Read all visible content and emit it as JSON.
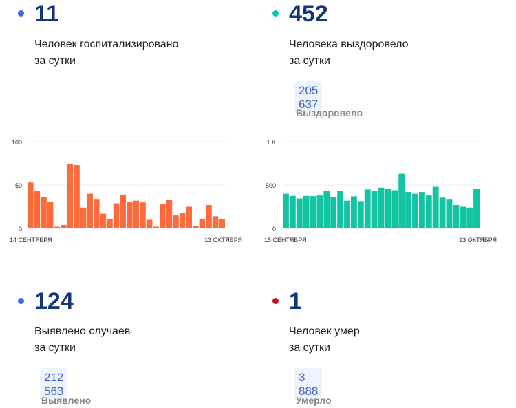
{
  "cards": [
    {
      "value": "11",
      "desc1": "Человек госпитализировано",
      "desc2": "за сутки",
      "dot": "#3d6de0"
    },
    {
      "value": "452",
      "desc1": "Человека выздоровело",
      "desc2": "за сутки",
      "total": "205 637",
      "total_label": "Выздоровело",
      "dot": "#13c4a3"
    },
    {
      "value": "124",
      "desc1": "Выявлено случаев",
      "desc2": "за сутки",
      "total": "212 563",
      "total_label": "Выявлено",
      "dot": "#3d6de0"
    },
    {
      "value": "1",
      "desc1": "Человек умер",
      "desc2": "за сутки",
      "total": "3 888",
      "total_label": "Умерло",
      "dot": "#c0141e"
    }
  ],
  "chart_data": [
    {
      "type": "bar",
      "color": "#ff6a3d",
      "yticks": [
        "100",
        "50",
        "0"
      ],
      "ylim": [
        0,
        100
      ],
      "x_start": "14 СЕНТЯБРЯ",
      "x_end": "13 ОКТЯБРЯ",
      "values": [
        53,
        43,
        36,
        31,
        2,
        4,
        74,
        73,
        24,
        40,
        34,
        17,
        11,
        29,
        39,
        31,
        32,
        30,
        10,
        2,
        28,
        33,
        15,
        18,
        25,
        3,
        11,
        27,
        14,
        11
      ]
    },
    {
      "type": "bar",
      "color": "#13c4a3",
      "yticks": [
        "1 K",
        "500",
        "0"
      ],
      "ylim": [
        0,
        1000
      ],
      "x_start": "15 СЕНТЯБРЯ",
      "x_end": "13 ОКТЯБРЯ",
      "values": [
        400,
        375,
        345,
        375,
        372,
        380,
        430,
        360,
        430,
        320,
        370,
        315,
        450,
        430,
        470,
        460,
        440,
        630,
        420,
        400,
        420,
        380,
        480,
        355,
        340,
        270,
        250,
        240,
        452
      ]
    }
  ]
}
